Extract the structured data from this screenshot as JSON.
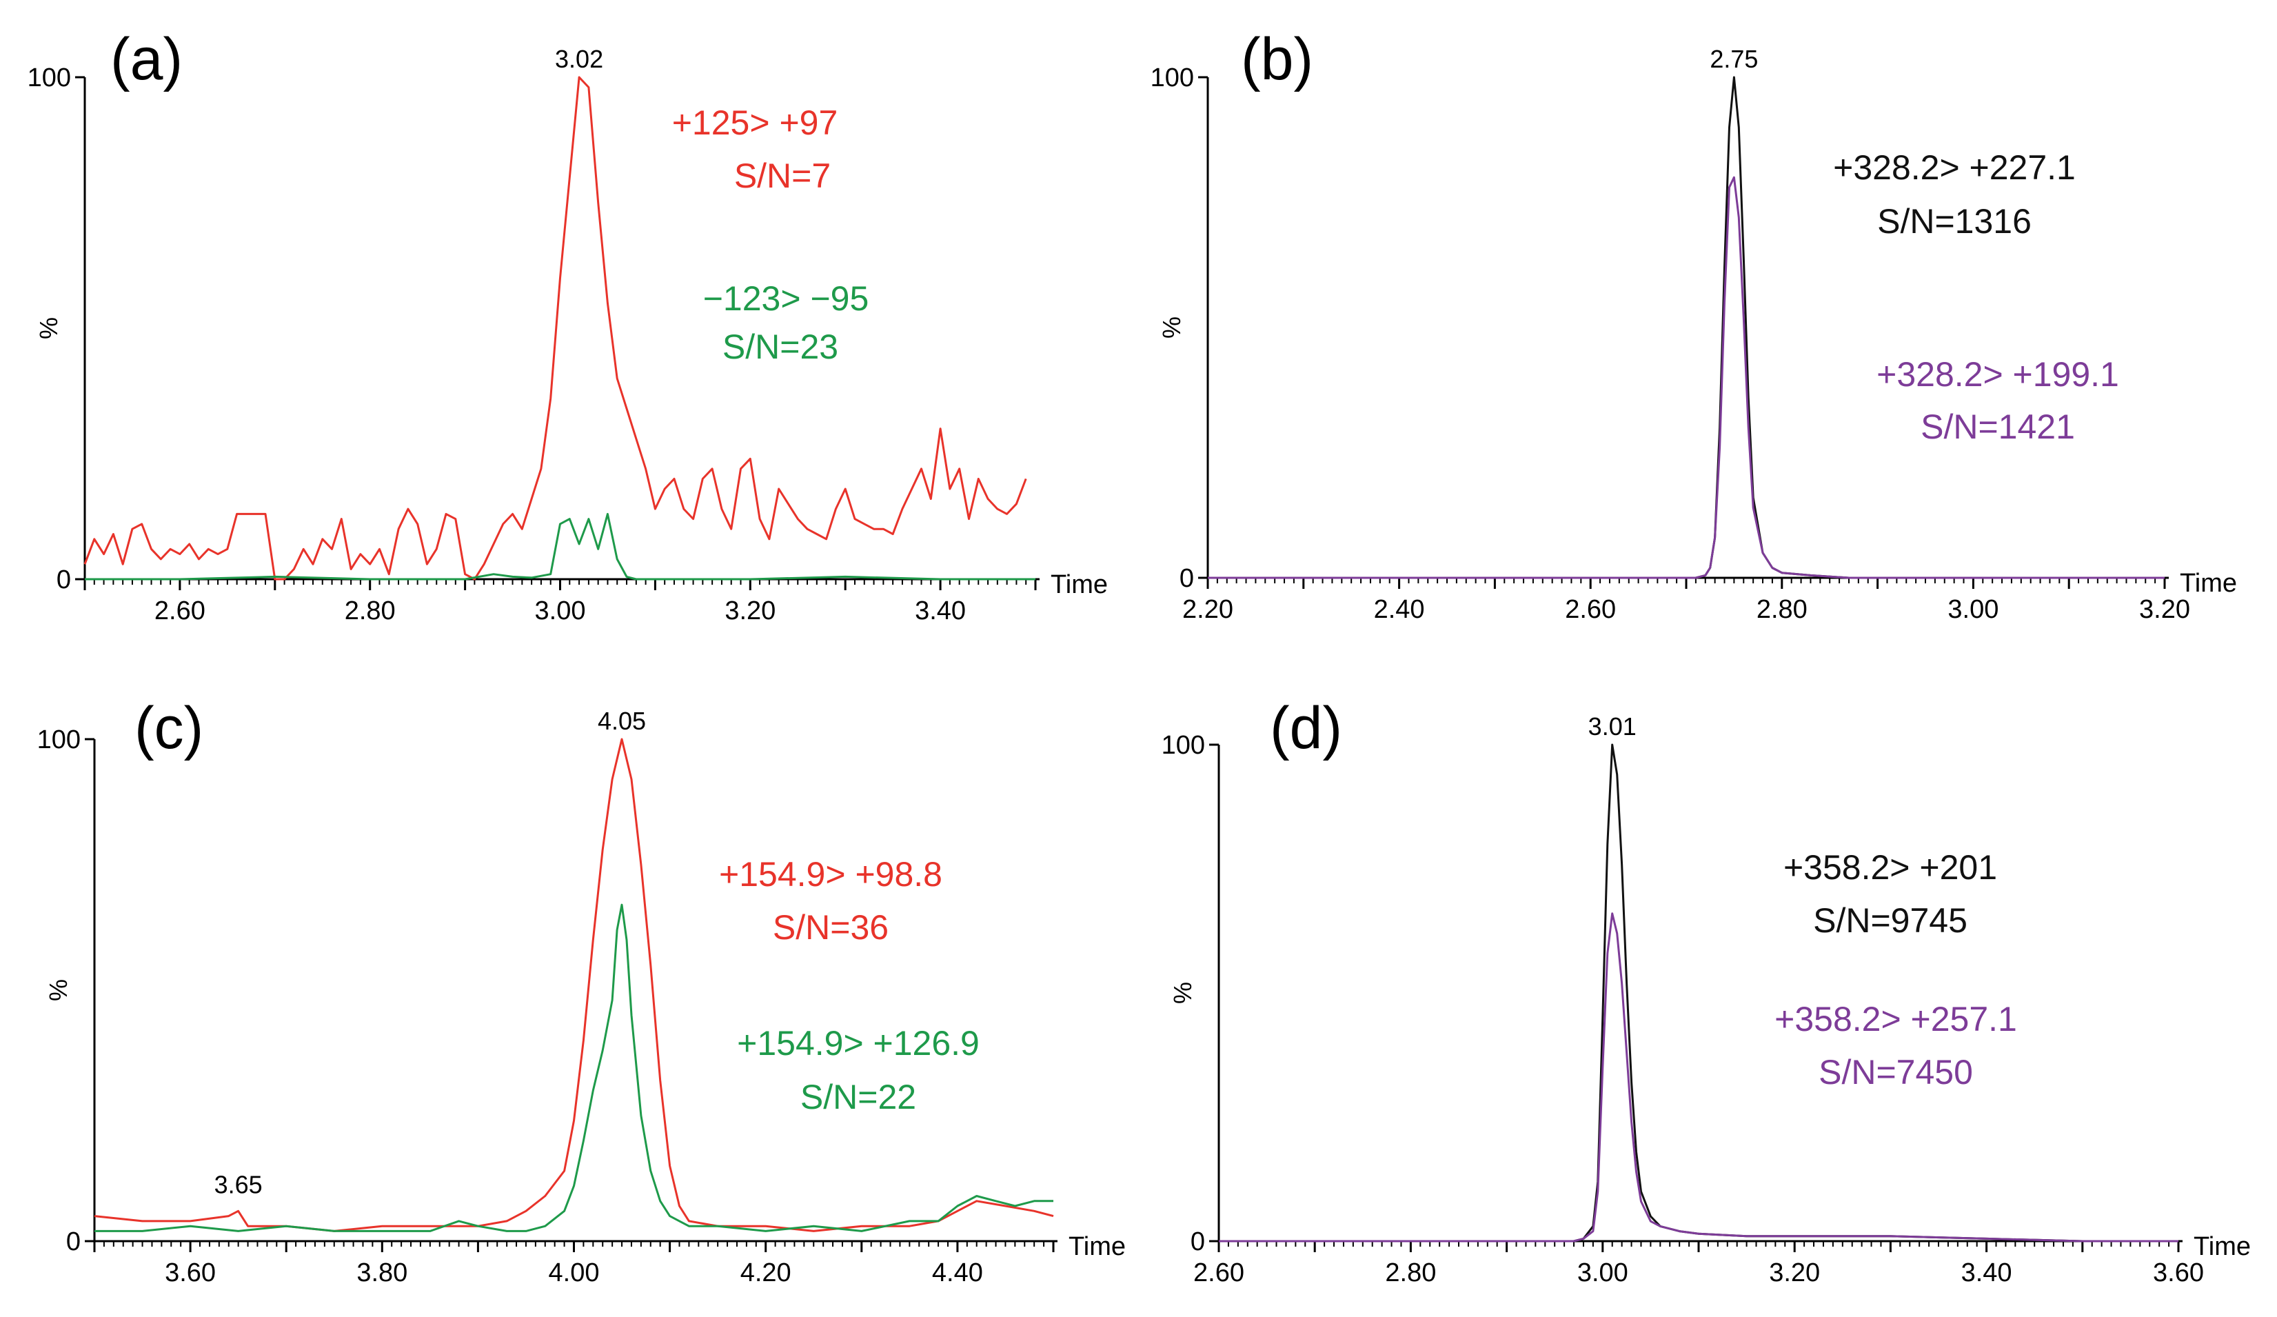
{
  "chart_data": [
    {
      "type": "line",
      "panel_label": "(a)",
      "xlabel": "Time",
      "ylabel": "%",
      "xlim": [
        2.5,
        3.5
      ],
      "ylim": [
        0,
        100
      ],
      "x_ticks": [
        "2.60",
        "2.80",
        "3.00",
        "3.20",
        "3.40"
      ],
      "y_ticks": [
        "0",
        "100"
      ],
      "peak_label": {
        "text": "3.02",
        "x": 3.02,
        "y": 100
      },
      "series": [
        {
          "name": "+125> +97",
          "sn": "S/N=7",
          "color": "#e8332a",
          "x": [
            2.5,
            2.51,
            2.52,
            2.53,
            2.54,
            2.55,
            2.56,
            2.57,
            2.58,
            2.59,
            2.6,
            2.61,
            2.62,
            2.63,
            2.64,
            2.65,
            2.66,
            2.67,
            2.68,
            2.69,
            2.7,
            2.71,
            2.72,
            2.73,
            2.74,
            2.75,
            2.76,
            2.77,
            2.78,
            2.79,
            2.8,
            2.81,
            2.82,
            2.83,
            2.84,
            2.85,
            2.86,
            2.87,
            2.88,
            2.89,
            2.9,
            2.91,
            2.92,
            2.93,
            2.94,
            2.95,
            2.96,
            2.97,
            2.98,
            2.99,
            3.0,
            3.01,
            3.02,
            3.03,
            3.04,
            3.05,
            3.06,
            3.07,
            3.08,
            3.09,
            3.1,
            3.11,
            3.12,
            3.13,
            3.14,
            3.15,
            3.16,
            3.17,
            3.18,
            3.19,
            3.2,
            3.21,
            3.22,
            3.23,
            3.24,
            3.25,
            3.26,
            3.27,
            3.28,
            3.29,
            3.3,
            3.31,
            3.32,
            3.33,
            3.34,
            3.35,
            3.36,
            3.37,
            3.38,
            3.39,
            3.4,
            3.41,
            3.42,
            3.43,
            3.44,
            3.45,
            3.46,
            3.47,
            3.48,
            3.49
          ],
          "y": [
            3,
            8,
            5,
            9,
            3,
            10,
            11,
            6,
            4,
            6,
            5,
            7,
            4,
            6,
            5,
            6,
            13,
            13,
            13,
            13,
            0,
            0,
            2,
            6,
            3,
            8,
            6,
            12,
            2,
            5,
            3,
            6,
            1,
            10,
            14,
            11,
            3,
            6,
            13,
            12,
            1,
            0,
            3,
            7,
            11,
            13,
            10,
            16,
            22,
            36,
            60,
            80,
            100,
            98,
            75,
            55,
            40,
            34,
            28,
            22,
            14,
            18,
            20,
            14,
            12,
            20,
            22,
            14,
            10,
            22,
            24,
            12,
            8,
            18,
            15,
            12,
            10,
            9,
            8,
            14,
            18,
            12,
            11,
            10,
            10,
            9,
            14,
            18,
            22,
            16,
            30,
            18,
            22,
            12,
            20,
            16,
            14,
            13,
            15,
            20
          ]
        },
        {
          "name": "−123> −95",
          "sn": "S/N=23",
          "color": "#1e9a4a",
          "x": [
            2.5,
            2.6,
            2.7,
            2.8,
            2.9,
            2.93,
            2.95,
            2.97,
            2.99,
            3.0,
            3.01,
            3.02,
            3.03,
            3.04,
            3.05,
            3.06,
            3.07,
            3.08,
            3.1,
            3.2,
            3.3,
            3.4,
            3.5
          ],
          "y": [
            0,
            0,
            0.5,
            0,
            0,
            1,
            0.5,
            0.3,
            1,
            11,
            12,
            7,
            12,
            6,
            13,
            4,
            0.5,
            0,
            0,
            0,
            0.5,
            0,
            0
          ]
        }
      ]
    },
    {
      "type": "line",
      "panel_label": "(b)",
      "xlabel": "Time",
      "ylabel": "%",
      "xlim": [
        2.2,
        3.2
      ],
      "ylim": [
        0,
        100
      ],
      "x_ticks": [
        "2.20",
        "2.40",
        "2.60",
        "2.80",
        "3.00",
        "3.20"
      ],
      "y_ticks": [
        "0",
        "100"
      ],
      "peak_label": {
        "text": "2.75",
        "x": 2.75,
        "y": 100
      },
      "series": [
        {
          "name": "+328.2> +227.1",
          "sn": "S/N=1316",
          "color": "#111111",
          "x": [
            2.2,
            2.6,
            2.7,
            2.71,
            2.72,
            2.725,
            2.73,
            2.735,
            2.74,
            2.745,
            2.75,
            2.755,
            2.76,
            2.765,
            2.77,
            2.78,
            2.79,
            2.8,
            2.83,
            2.87,
            3.0,
            3.2
          ],
          "y": [
            0,
            0,
            0,
            0,
            0.5,
            2,
            8,
            30,
            62,
            90,
            100,
            90,
            64,
            36,
            16,
            5,
            2,
            1,
            0.5,
            0,
            0,
            0
          ]
        },
        {
          "name": "+328.2> +199.1",
          "sn": "S/N=1421",
          "color": "#7d3c98",
          "x": [
            2.2,
            2.6,
            2.7,
            2.71,
            2.72,
            2.725,
            2.73,
            2.735,
            2.74,
            2.745,
            2.75,
            2.755,
            2.76,
            2.765,
            2.77,
            2.78,
            2.79,
            2.8,
            2.83,
            2.87,
            3.0,
            3.2
          ],
          "y": [
            0,
            0,
            0,
            0,
            0.5,
            2,
            8,
            26,
            55,
            78,
            80,
            72,
            52,
            30,
            14,
            5,
            2,
            1,
            0.5,
            0,
            0,
            0
          ]
        }
      ]
    },
    {
      "type": "line",
      "panel_label": "(c)",
      "xlabel": "Time",
      "ylabel": "%",
      "xlim": [
        3.5,
        4.5
      ],
      "ylim": [
        0,
        100
      ],
      "x_ticks": [
        "3.60",
        "3.80",
        "4.00",
        "4.20",
        "4.40"
      ],
      "y_ticks": [
        "0",
        "100"
      ],
      "peak_label": {
        "text": "4.05",
        "x": 4.05,
        "y": 100
      },
      "minor_label": {
        "text": "3.65",
        "x": 3.65,
        "y": 6
      },
      "series": [
        {
          "name": "+154.9> +98.8",
          "sn": "S/N=36",
          "color": "#e8332a",
          "x": [
            3.5,
            3.55,
            3.6,
            3.64,
            3.65,
            3.66,
            3.7,
            3.75,
            3.8,
            3.85,
            3.9,
            3.93,
            3.95,
            3.97,
            3.99,
            4.0,
            4.01,
            4.02,
            4.03,
            4.04,
            4.05,
            4.06,
            4.07,
            4.08,
            4.09,
            4.1,
            4.11,
            4.12,
            4.15,
            4.2,
            4.25,
            4.3,
            4.35,
            4.38,
            4.4,
            4.42,
            4.45,
            4.48,
            4.5
          ],
          "y": [
            5,
            4,
            4,
            5,
            6,
            3,
            3,
            2,
            3,
            3,
            3,
            4,
            6,
            9,
            14,
            24,
            40,
            60,
            78,
            92,
            100,
            92,
            75,
            55,
            32,
            15,
            7,
            4,
            3,
            3,
            2,
            3,
            3,
            4,
            6,
            8,
            7,
            6,
            5
          ]
        },
        {
          "name": "+154.9> +126.9",
          "sn": "S/N=22",
          "color": "#1e9a4a",
          "x": [
            3.5,
            3.55,
            3.6,
            3.65,
            3.7,
            3.75,
            3.8,
            3.85,
            3.88,
            3.9,
            3.93,
            3.95,
            3.97,
            3.99,
            4.0,
            4.01,
            4.02,
            4.03,
            4.04,
            4.045,
            4.05,
            4.055,
            4.06,
            4.07,
            4.08,
            4.09,
            4.1,
            4.11,
            4.12,
            4.15,
            4.2,
            4.25,
            4.3,
            4.35,
            4.38,
            4.4,
            4.42,
            4.44,
            4.46,
            4.48,
            4.5
          ],
          "y": [
            2,
            2,
            3,
            2,
            3,
            2,
            2,
            2,
            4,
            3,
            2,
            2,
            3,
            6,
            11,
            20,
            30,
            38,
            48,
            62,
            67,
            60,
            45,
            25,
            14,
            8,
            5,
            4,
            3,
            3,
            2,
            3,
            2,
            4,
            4,
            7,
            9,
            8,
            7,
            8,
            8
          ]
        }
      ]
    },
    {
      "type": "line",
      "panel_label": "(d)",
      "xlabel": "Time",
      "ylabel": "%",
      "xlim": [
        2.6,
        3.6
      ],
      "ylim": [
        0,
        100
      ],
      "x_ticks": [
        "2.60",
        "2.80",
        "3.00",
        "3.20",
        "3.40",
        "3.60"
      ],
      "y_ticks": [
        "0",
        "100"
      ],
      "peak_label": {
        "text": "3.01",
        "x": 3.01,
        "y": 100
      },
      "series": [
        {
          "name": "+358.2> +201",
          "sn": "S/N=9745",
          "color": "#111111",
          "x": [
            2.6,
            2.9,
            2.97,
            2.98,
            2.99,
            2.995,
            3.0,
            3.005,
            3.01,
            3.015,
            3.02,
            3.025,
            3.03,
            3.035,
            3.04,
            3.05,
            3.06,
            3.08,
            3.1,
            3.15,
            3.2,
            3.3,
            3.4,
            3.5,
            3.6
          ],
          "y": [
            0,
            0,
            0,
            0.5,
            3,
            12,
            45,
            80,
            100,
            94,
            76,
            52,
            32,
            18,
            10,
            5,
            3,
            2,
            1.5,
            1,
            1,
            1,
            0.5,
            0,
            0
          ]
        },
        {
          "name": "+358.2> +257.1",
          "sn": "S/N=7450",
          "color": "#7d3c98",
          "x": [
            2.6,
            2.9,
            2.97,
            2.98,
            2.99,
            2.995,
            3.0,
            3.005,
            3.01,
            3.015,
            3.02,
            3.025,
            3.03,
            3.035,
            3.04,
            3.05,
            3.06,
            3.08,
            3.1,
            3.15,
            3.2,
            3.3,
            3.4,
            3.5,
            3.6
          ],
          "y": [
            0,
            0,
            0,
            0.5,
            2,
            10,
            35,
            58,
            66,
            62,
            52,
            38,
            24,
            14,
            8,
            4,
            3,
            2,
            1.5,
            1,
            1,
            1,
            0.5,
            0,
            0
          ]
        }
      ]
    }
  ]
}
